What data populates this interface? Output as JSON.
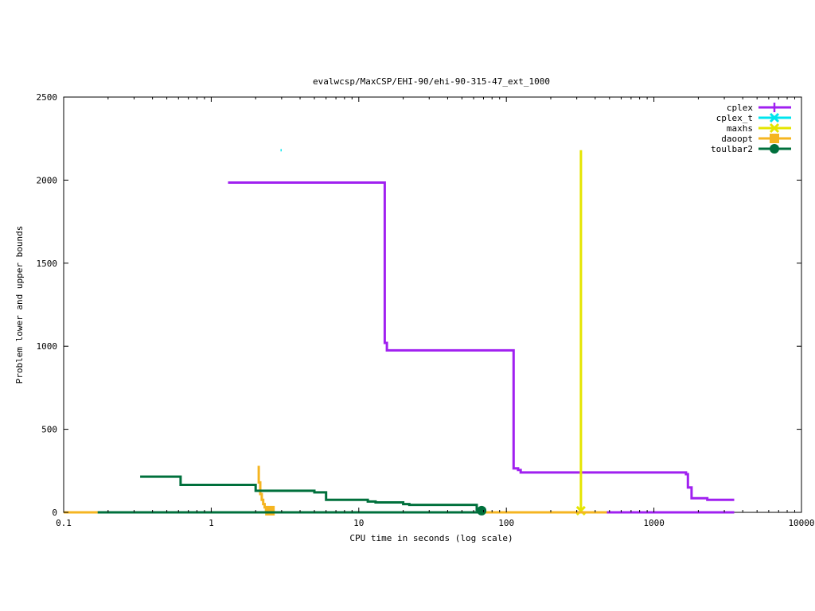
{
  "chart_data": {
    "type": "line",
    "title": "evalwcsp/MaxCSP/EHI-90/ehi-90-315-47_ext_1000",
    "xlabel": "CPU time in seconds (log scale)",
    "ylabel": "Problem lower and upper bounds",
    "xscale": "log",
    "xlim": [
      0.1,
      10000
    ],
    "ylim": [
      0,
      2500
    ],
    "x_ticks": [
      0.1,
      1,
      10,
      100,
      1000,
      10000
    ],
    "x_tick_labels": [
      "0.1",
      "1",
      "10",
      "100",
      "1000",
      "10000"
    ],
    "y_ticks": [
      0,
      500,
      1000,
      1500,
      2000,
      2500
    ],
    "y_tick_labels": [
      "0",
      "500",
      "1000",
      "1500",
      "2000",
      "2500"
    ],
    "grid": false,
    "legend_position": "top-right",
    "series": [
      {
        "name": "cplex",
        "color": "#a020f0",
        "marker": "plus",
        "upper": [
          [
            1.3,
            1985
          ],
          [
            15.0,
            1985
          ],
          [
            15.0,
            1020
          ],
          [
            15.5,
            1020
          ],
          [
            15.5,
            975
          ],
          [
            112,
            975
          ],
          [
            112,
            265
          ],
          [
            120,
            265
          ],
          [
            120,
            255
          ],
          [
            125,
            255
          ],
          [
            125,
            240
          ],
          [
            1650,
            240
          ],
          [
            1650,
            230
          ],
          [
            1700,
            230
          ],
          [
            1700,
            150
          ],
          [
            1800,
            150
          ],
          [
            1800,
            85
          ],
          [
            2300,
            85
          ],
          [
            2300,
            75
          ],
          [
            3500,
            75
          ]
        ],
        "lower": [
          [
            480,
            0
          ],
          [
            3500,
            0
          ]
        ],
        "marker_points": []
      },
      {
        "name": "cplex_t",
        "color": "#00e5ee",
        "marker": "cross",
        "upper": [
          [
            2.95,
            2180
          ],
          [
            3.0,
            2180
          ]
        ],
        "lower": [],
        "marker_points": []
      },
      {
        "name": "maxhs",
        "color": "#e5e500",
        "marker": "cross",
        "upper": [
          [
            320,
            2180
          ],
          [
            320,
            10
          ]
        ],
        "lower": [
          [
            320,
            0
          ]
        ],
        "marker_points": [
          [
            320,
            10
          ]
        ]
      },
      {
        "name": "daoopt",
        "color": "#f5b521",
        "marker": "square",
        "upper": [
          [
            2.1,
            280
          ],
          [
            2.1,
            180
          ],
          [
            2.15,
            180
          ],
          [
            2.15,
            110
          ],
          [
            2.2,
            110
          ],
          [
            2.2,
            75
          ],
          [
            2.25,
            75
          ],
          [
            2.25,
            50
          ],
          [
            2.3,
            50
          ],
          [
            2.3,
            30
          ],
          [
            2.35,
            30
          ],
          [
            2.35,
            15
          ],
          [
            2.5,
            15
          ]
        ],
        "lower": [
          [
            0.1,
            0
          ],
          [
            480,
            0
          ]
        ],
        "marker_points": [
          [
            2.5,
            10
          ]
        ]
      },
      {
        "name": "toulbar2",
        "color": "#00703c",
        "marker": "circle",
        "upper": [
          [
            0.33,
            215
          ],
          [
            0.62,
            215
          ],
          [
            0.62,
            165
          ],
          [
            2.0,
            165
          ],
          [
            2.0,
            130
          ],
          [
            5.0,
            130
          ],
          [
            5.0,
            120
          ],
          [
            6.0,
            120
          ],
          [
            6.0,
            75
          ],
          [
            11.5,
            75
          ],
          [
            11.5,
            65
          ],
          [
            13.0,
            65
          ],
          [
            13.0,
            60
          ],
          [
            20.0,
            60
          ],
          [
            20.0,
            50
          ],
          [
            22.0,
            50
          ],
          [
            22.0,
            45
          ],
          [
            63.0,
            45
          ],
          [
            63.0,
            15
          ],
          [
            68.0,
            15
          ]
        ],
        "lower": [
          [
            0.17,
            0
          ],
          [
            68.0,
            0
          ]
        ],
        "marker_points": [
          [
            68.0,
            10
          ]
        ]
      }
    ]
  }
}
